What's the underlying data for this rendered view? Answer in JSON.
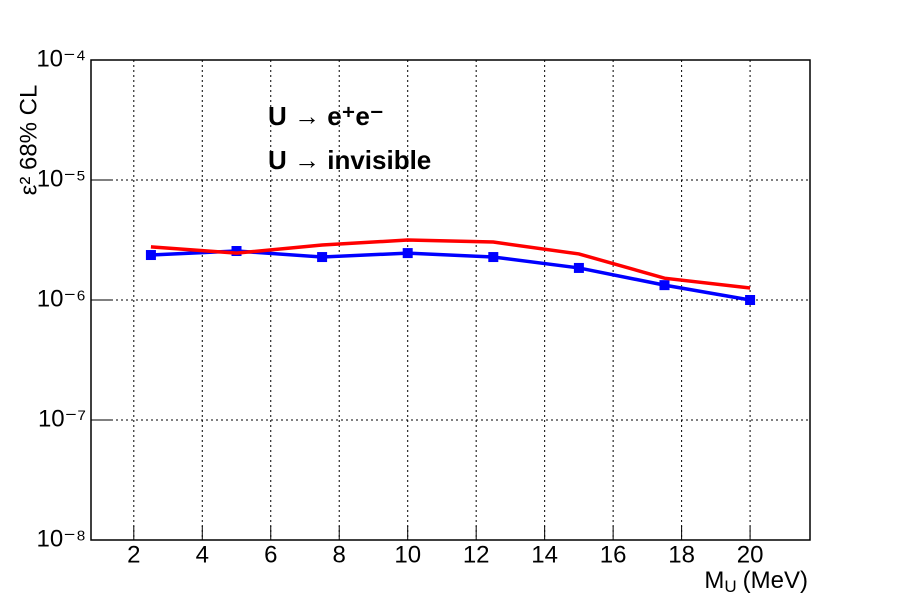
{
  "chart_data": {
    "type": "line",
    "ylabel": "ε² 68% CL",
    "xlabel": {
      "main": "M",
      "sub": "U",
      "unit": "(MeV)"
    },
    "x": [
      2.5,
      5,
      7.5,
      10,
      12.5,
      15,
      17.5,
      20
    ],
    "series": [
      {
        "name": "U → e⁺e⁻",
        "color": "#0000ff",
        "markers": true,
        "values": [
          2.37e-06,
          2.56e-06,
          2.28e-06,
          2.46e-06,
          2.28e-06,
          1.85e-06,
          1.33e-06,
          1e-06
        ]
      },
      {
        "name": "U → invisible",
        "color": "#ff0000",
        "markers": false,
        "values": [
          2.77e-06,
          2.46e-06,
          2.87e-06,
          3.16e-06,
          3.04e-06,
          2.42e-06,
          1.52e-06,
          1.26e-06
        ]
      }
    ],
    "xlim": [
      0.75,
      21.75
    ],
    "xticks": [
      2,
      4,
      6,
      8,
      10,
      12,
      14,
      16,
      18,
      20
    ],
    "ylim": [
      1e-08,
      0.0001
    ],
    "yticks": [
      {
        "value": 1e-08,
        "label": "10⁻⁸"
      },
      {
        "value": 1e-07,
        "label": "10⁻⁷"
      },
      {
        "value": 1e-06,
        "label": "10⁻⁶"
      },
      {
        "value": 1e-05,
        "label": "10⁻⁵"
      },
      {
        "value": 0.0001,
        "label": "10⁻⁴"
      }
    ],
    "ylog": true,
    "grid": true,
    "legend": "upper left"
  }
}
